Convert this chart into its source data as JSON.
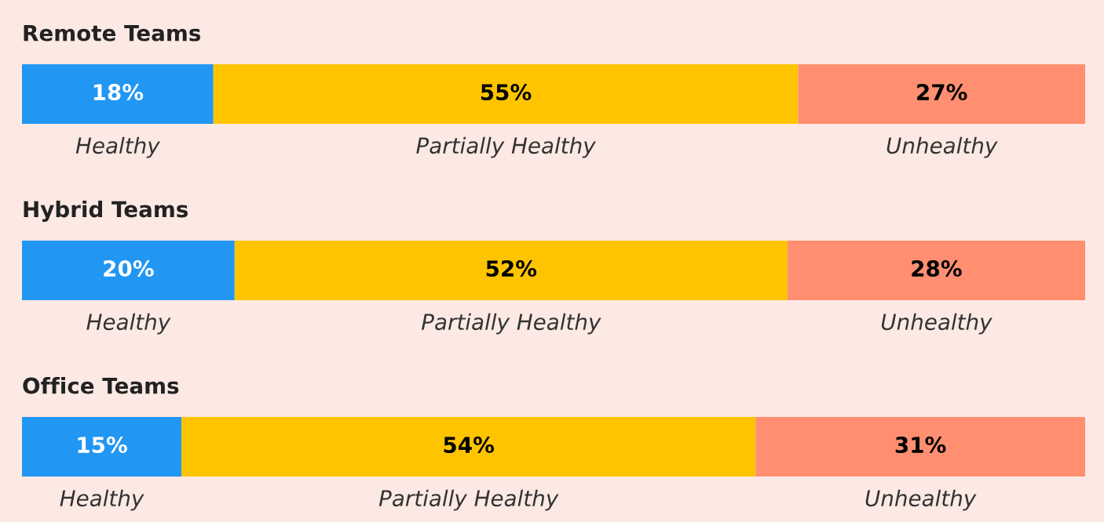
{
  "chart_data": [
    {
      "type": "bar",
      "title": "Remote Teams",
      "orientation": "horizontal",
      "stacked": true,
      "categories": [
        null
      ],
      "xlim": [
        0,
        100
      ],
      "tick_labels": false,
      "series": [
        {
          "name": "Healthy",
          "color": "#2196f3",
          "values": [
            18
          ],
          "value_labels": [
            "18%"
          ]
        },
        {
          "name": "Partially Healthy",
          "color": "#ffc400",
          "values": [
            55
          ],
          "value_labels": [
            "55%"
          ]
        },
        {
          "name": "Unhealthy",
          "color": "#ff8f70",
          "values": [
            27
          ],
          "value_labels": [
            "27%"
          ]
        }
      ]
    },
    {
      "type": "bar",
      "title": "Hybrid Teams",
      "orientation": "horizontal",
      "stacked": true,
      "categories": [
        null
      ],
      "xlim": [
        0,
        100
      ],
      "tick_labels": false,
      "series": [
        {
          "name": "Healthy",
          "color": "#2196f3",
          "values": [
            20
          ],
          "value_labels": [
            "20%"
          ]
        },
        {
          "name": "Partially Healthy",
          "color": "#ffc400",
          "values": [
            52
          ],
          "value_labels": [
            "52%"
          ]
        },
        {
          "name": "Unhealthy",
          "color": "#ff8f70",
          "values": [
            28
          ],
          "value_labels": [
            "28%"
          ]
        }
      ]
    },
    {
      "type": "bar",
      "title": "Office Teams",
      "orientation": "horizontal",
      "stacked": true,
      "categories": [
        null
      ],
      "xlim": [
        0,
        100
      ],
      "tick_labels": false,
      "series": [
        {
          "name": "Healthy",
          "color": "#2196f3",
          "values": [
            15
          ],
          "value_labels": [
            "15%"
          ]
        },
        {
          "name": "Partially Healthy",
          "color": "#ffc400",
          "values": [
            54
          ],
          "value_labels": [
            "54%"
          ]
        },
        {
          "name": "Unhealthy",
          "color": "#ff8f70",
          "values": [
            31
          ],
          "value_labels": [
            "31%"
          ]
        }
      ]
    }
  ]
}
